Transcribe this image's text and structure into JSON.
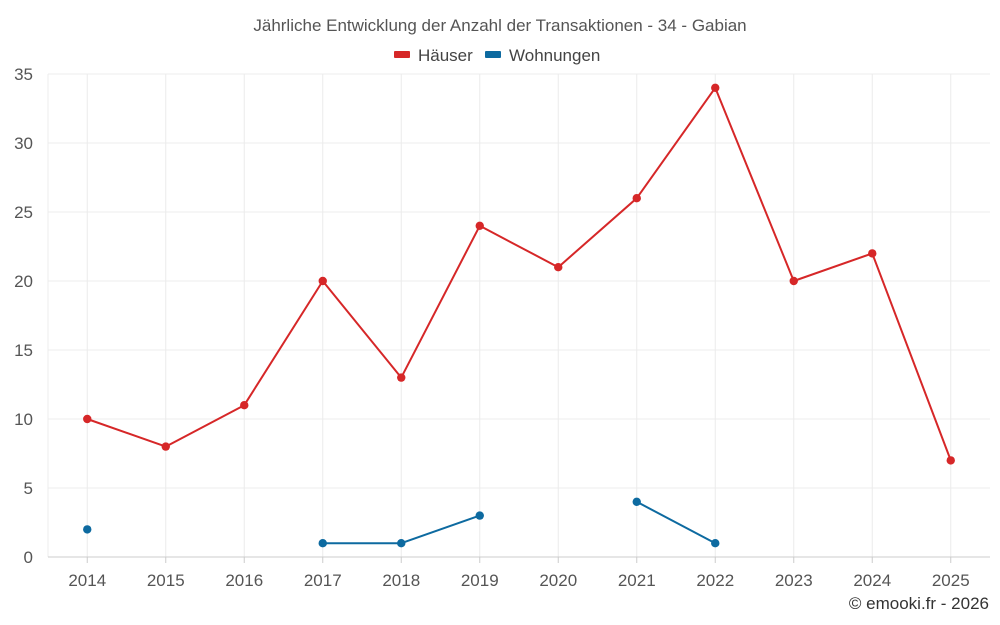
{
  "chart_data": {
    "type": "line",
    "title": "Jährliche Entwicklung der Anzahl der Transaktionen - 34 - Gabian",
    "categories": [
      "2014",
      "2015",
      "2016",
      "2017",
      "2018",
      "2019",
      "2020",
      "2021",
      "2022",
      "2023",
      "2024",
      "2025"
    ],
    "yticks": [
      "0",
      "5",
      "10",
      "15",
      "20",
      "25",
      "30",
      "35"
    ],
    "ylim": [
      0,
      35
    ],
    "xlabel": "",
    "ylabel": "",
    "grid": true,
    "legend_position": "top-center",
    "series": [
      {
        "name": "Häuser",
        "color": "#d62728",
        "values": [
          10,
          8,
          11,
          20,
          13,
          24,
          21,
          26,
          34,
          20,
          22,
          7
        ]
      },
      {
        "name": "Wohnungen",
        "color": "#0d6aa0",
        "values": [
          2,
          null,
          null,
          1,
          1,
          3,
          null,
          4,
          1,
          null,
          null,
          null
        ]
      }
    ],
    "copyright": "© emooki.fr - 2026"
  }
}
